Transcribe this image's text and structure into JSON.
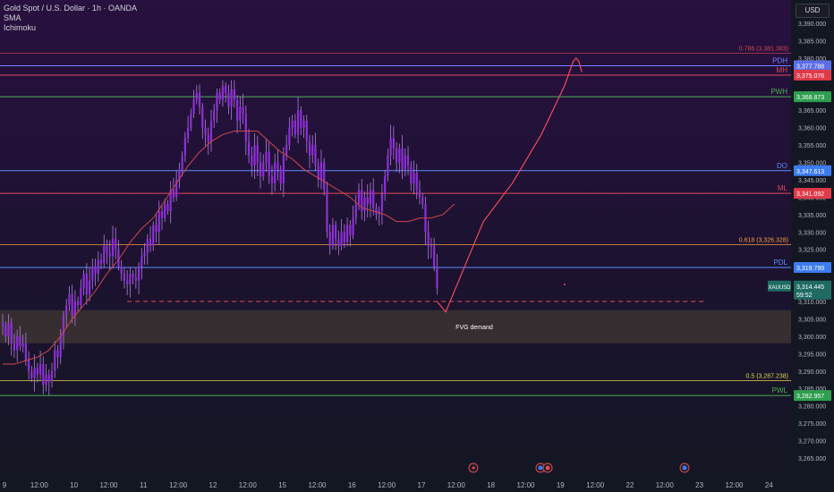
{
  "legend": {
    "title": "Gold Spot / U.S. Dollar · 1h · OANDA",
    "indicators": [
      "SMA",
      "Ichimoku"
    ]
  },
  "currency_button": "USD",
  "colors": {
    "background_top": "#26113f",
    "background_bottom": "#131722",
    "candle": "#8e2fd6",
    "candle_wick": "#b27be0",
    "sma": "#d2454f",
    "projection": "#f04a5a",
    "fvg_zone": "#3c3232",
    "grid_text": "#b2b5be"
  },
  "chart_data": {
    "type": "candlestick",
    "symbol": "XAUUSD",
    "ylim": [
      3260,
      3395
    ],
    "y_ticks": [
      3265,
      3270,
      3275,
      3280,
      3285,
      3290,
      3295,
      3300,
      3305,
      3310,
      3315,
      3320,
      3325,
      3330,
      3335,
      3340,
      3345,
      3350,
      3355,
      3360,
      3365,
      3370,
      3375,
      3380,
      3385,
      3390
    ],
    "y_tick_labels": [
      "3,265.000",
      "3,270.000",
      "3,275.000",
      "3,280.000",
      "3,285.000",
      "3,290.000",
      "3,295.000",
      "3,300.000",
      "3,305.000",
      "3,310.000",
      "3,315.000",
      "3,320.000",
      "3,325.000",
      "3,330.000",
      "3,335.000",
      "3,340.000",
      "3,345.000",
      "3,350.000",
      "3,355.000",
      "3,360.000",
      "3,365.000",
      "3,370.000",
      "3,375.000",
      "3,380.000",
      "3,385.000",
      "3,390.000"
    ],
    "x_ticks": [
      {
        "label": "9",
        "bar": 0
      },
      {
        "label": "12:00",
        "bar": 12
      },
      {
        "label": "10",
        "bar": 24
      },
      {
        "label": "12:00",
        "bar": 36
      },
      {
        "label": "11",
        "bar": 48
      },
      {
        "label": "12:00",
        "bar": 60
      },
      {
        "label": "12",
        "bar": 72
      },
      {
        "label": "12:00",
        "bar": 84
      },
      {
        "label": "15",
        "bar": 96
      },
      {
        "label": "12:00",
        "bar": 108
      },
      {
        "label": "16",
        "bar": 120
      },
      {
        "label": "12:00",
        "bar": 132
      },
      {
        "label": "17",
        "bar": 144
      },
      {
        "label": "12:00",
        "bar": 156
      },
      {
        "label": "18",
        "bar": 168
      },
      {
        "label": "12:00",
        "bar": 180
      },
      {
        "label": "19",
        "bar": 192
      },
      {
        "label": "12:00",
        "bar": 204
      },
      {
        "label": "22",
        "bar": 216
      },
      {
        "label": "12:00",
        "bar": 228
      },
      {
        "label": "23",
        "bar": 240
      },
      {
        "label": "12:00",
        "bar": 252
      },
      {
        "label": "24",
        "bar": 264
      }
    ],
    "candles_close": [
      3303,
      3300,
      3304,
      3298,
      3296,
      3300,
      3297,
      3298,
      3293,
      3290,
      3288,
      3291,
      3289,
      3292,
      3286,
      3289,
      3287,
      3290,
      3296,
      3294,
      3300,
      3306,
      3309,
      3312,
      3306,
      3310,
      3309,
      3314,
      3318,
      3312,
      3316,
      3320,
      3318,
      3322,
      3321,
      3326,
      3324,
      3323,
      3328,
      3325,
      3320,
      3318,
      3316,
      3315,
      3318,
      3317,
      3316,
      3320,
      3323,
      3324,
      3328,
      3326,
      3332,
      3330,
      3336,
      3334,
      3338,
      3336,
      3342,
      3340,
      3345,
      3348,
      3352,
      3357,
      3360,
      3364,
      3368,
      3370,
      3366,
      3360,
      3358,
      3356,
      3362,
      3365,
      3370,
      3368,
      3372,
      3370,
      3366,
      3371,
      3368,
      3362,
      3366,
      3364,
      3356,
      3352,
      3349,
      3355,
      3350,
      3346,
      3350,
      3353,
      3346,
      3344,
      3350,
      3348,
      3344,
      3352,
      3355,
      3360,
      3362,
      3358,
      3365,
      3360,
      3362,
      3356,
      3352,
      3355,
      3349,
      3345,
      3350,
      3342,
      3330,
      3326,
      3332,
      3328,
      3326,
      3330,
      3327,
      3332,
      3329,
      3334,
      3338,
      3342,
      3336,
      3340,
      3338,
      3342,
      3337,
      3335,
      3336,
      3341,
      3346,
      3352,
      3357,
      3354,
      3350,
      3354,
      3348,
      3352,
      3349,
      3344,
      3347,
      3342,
      3340,
      3338,
      3330,
      3326,
      3326,
      3320,
      3314
    ],
    "sma": [
      3292,
      3292,
      3293,
      3294,
      3296,
      3300,
      3305,
      3309,
      3313,
      3318,
      3322,
      3327,
      3331,
      3334,
      3339,
      3344,
      3349,
      3353,
      3356,
      3358,
      3359,
      3359,
      3359,
      3356,
      3353,
      3351,
      3348,
      3346,
      3344,
      3342,
      3340,
      3337,
      3336,
      3335,
      3333,
      3333,
      3334,
      3334,
      3335,
      3338
    ],
    "sma_start_bar": 0,
    "sma_step": 4,
    "projection": [
      {
        "bar": 150,
        "price": 3310
      },
      {
        "bar": 153,
        "price": 3307
      },
      {
        "bar": 158,
        "price": 3317
      },
      {
        "bar": 166,
        "price": 3333
      },
      {
        "bar": 176,
        "price": 3344
      },
      {
        "bar": 186,
        "price": 3358
      },
      {
        "bar": 194,
        "price": 3372
      },
      {
        "bar": 197,
        "price": 3379
      },
      {
        "bar": 198,
        "price": 3380
      },
      {
        "bar": 199,
        "price": 3379
      },
      {
        "bar": 200,
        "price": 3376
      }
    ],
    "levels": [
      {
        "name": "PDH",
        "price": 3377.788,
        "color": "#6f86ff",
        "label_color": "#6f86ff",
        "tag": "3,377.788",
        "tag_bg": "#5b6ee8"
      },
      {
        "name": "MH",
        "price": 3375.076,
        "color": "#e04a55",
        "label_color": "#e04a55",
        "tag": "3,375.076",
        "tag_bg": "#e03a48"
      },
      {
        "name": "PWH",
        "price": 3368.873,
        "color": "#4caf50",
        "label_color": "#4caf50",
        "tag": "3,368.873",
        "tag_bg": "#2e9e4f"
      },
      {
        "name": "DO",
        "price": 3347.613,
        "color": "#5b8fff",
        "label_color": "#5b8fff",
        "tag": "3,347.613",
        "tag_bg": "#3d7cf0"
      },
      {
        "name": "ML",
        "price": 3341.092,
        "color": "#e04a55",
        "label_color": "#e04a55",
        "tag": "3,341.092",
        "tag_bg": "#e03a48"
      },
      {
        "name": "PDL",
        "price": 3319.799,
        "color": "#5b8fff",
        "label_color": "#5b8fff",
        "tag": "3,319.799",
        "tag_bg": "#3d7cf0"
      },
      {
        "name": "PWL",
        "price": 3282.957,
        "color": "#4caf50",
        "label_color": "#4caf50",
        "tag": "3,282.957",
        "tag_bg": "#2e9e4f"
      }
    ],
    "fib_levels": [
      {
        "label": "0.786 (3,381.383)",
        "price": 3381.383,
        "color": "#d04a50"
      },
      {
        "label": "0.618 (3,326.328)",
        "price": 3326.328,
        "color": "#f0a040"
      },
      {
        "label": "0.5 (3,287.238)",
        "price": 3287.238,
        "color": "#e8d44d"
      }
    ],
    "fvg_zone": {
      "label": "FVG demand",
      "top": 3307.5,
      "bottom": 3298
    },
    "dashed_level": 3310,
    "current_price": {
      "symbol": "XAUUSD",
      "price": "3,314.445",
      "countdown": "59:52",
      "value": 3314.445
    }
  }
}
